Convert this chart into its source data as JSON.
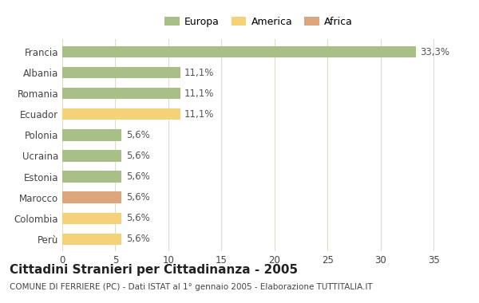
{
  "title": "Cittadini Stranieri per Cittadinanza - 2005",
  "subtitle": "COMUNE DI FERRIERE (PC) - Dati ISTAT al 1° gennaio 2005 - Elaborazione TUTTITALIA.IT",
  "categories": [
    "Francia",
    "Albania",
    "Romania",
    "Ecuador",
    "Polonia",
    "Ucraina",
    "Estonia",
    "Marocco",
    "Colombia",
    "Perù"
  ],
  "values": [
    33.3,
    11.1,
    11.1,
    11.1,
    5.6,
    5.6,
    5.6,
    5.6,
    5.6,
    5.6
  ],
  "labels": [
    "33,3%",
    "11,1%",
    "11,1%",
    "11,1%",
    "5,6%",
    "5,6%",
    "5,6%",
    "5,6%",
    "5,6%",
    "5,6%"
  ],
  "colors": [
    "#adc eighteen88",
    "#a8c eighteen88",
    "#a8c eighteen88",
    "#f5d27a",
    "#a8c eighteen88",
    "#a8c eighteen88",
    "#a8c eighteen88",
    "#dda57a",
    "#f5d27a",
    "#f5d27a"
  ],
  "bar_colors": [
    "#a8c088",
    "#a8c088",
    "#a8c088",
    "#f5d27a",
    "#a8c088",
    "#a8c088",
    "#a8c088",
    "#dda57a",
    "#f5d27a",
    "#f5d27a"
  ],
  "legend_labels": [
    "Europa",
    "America",
    "Africa"
  ],
  "legend_colors": [
    "#a8c088",
    "#f5d27a",
    "#dda57a"
  ],
  "xlim": [
    0,
    37
  ],
  "xticks": [
    0,
    5,
    10,
    15,
    20,
    25,
    30,
    35
  ],
  "background_color": "#ffffff",
  "grid_color": "#ddddcc",
  "bar_height": 0.55,
  "title_fontsize": 11,
  "subtitle_fontsize": 7.5,
  "tick_fontsize": 8.5,
  "label_fontsize": 8.5
}
